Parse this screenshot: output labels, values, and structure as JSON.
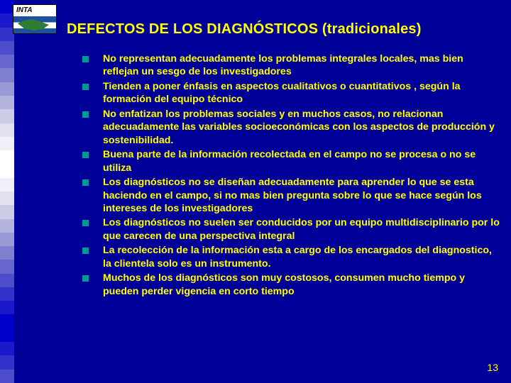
{
  "colors": {
    "background": "#000099",
    "title_text": "#ffff00",
    "body_text": "#ffff00",
    "bullet": "#009999",
    "stripe_gradient": [
      "#0000cc",
      "#1a1acc",
      "#3333cc",
      "#4d4dcc",
      "#6666cc",
      "#8080d0",
      "#9999d6",
      "#b3b3dd",
      "#cccce6",
      "#e0e0f0",
      "#f0f0f8",
      "#ffffff",
      "#ffffff",
      "#f0f0f8",
      "#e0e0f0",
      "#cccce6",
      "#b3b3dd",
      "#9999d6",
      "#8080d0",
      "#6666cc",
      "#4d4dcc",
      "#3333cc",
      "#1a1acc",
      "#0000cc",
      "#0000cc",
      "#1a1acc",
      "#3333cc",
      "#4d4dcc"
    ]
  },
  "logo": {
    "label": "INTA"
  },
  "title": "DEFECTOS DE LOS DIAGNÓSTICOS (tradicionales)",
  "bullets": [
    "No representan adecuadamente los problemas integrales locales, mas bien reflejan un sesgo de los investigadores",
    "Tienden a poner énfasis en aspectos cualitativos o cuantitativos , según la formación del equipo técnico",
    "No enfatizan los problemas sociales y en muchos casos, no relacionan adecuadamente las variables socioeconómicas  con los aspectos de producción y sostenibilidad.",
    "Buena parte de la información recolectada en el campo no se procesa o no se utiliza",
    "Los diagnósticos no se diseñan adecuadamente para aprender lo que se esta haciendo en el campo, si no mas bien pregunta sobre lo que se hace según los intereses de los investigadores",
    "Los diagnósticos no suelen ser conducidos por un equipo multidisciplinario por lo que carecen de una perspectiva integral",
    "La recolección de la información esta a cargo de los encargados del diagnostico, la clientela solo es un instrumento.",
    "Muchos de los diagnósticos son muy costosos, consumen mucho tiempo y pueden perder vigencia en corto tiempo"
  ],
  "page_number": "13"
}
